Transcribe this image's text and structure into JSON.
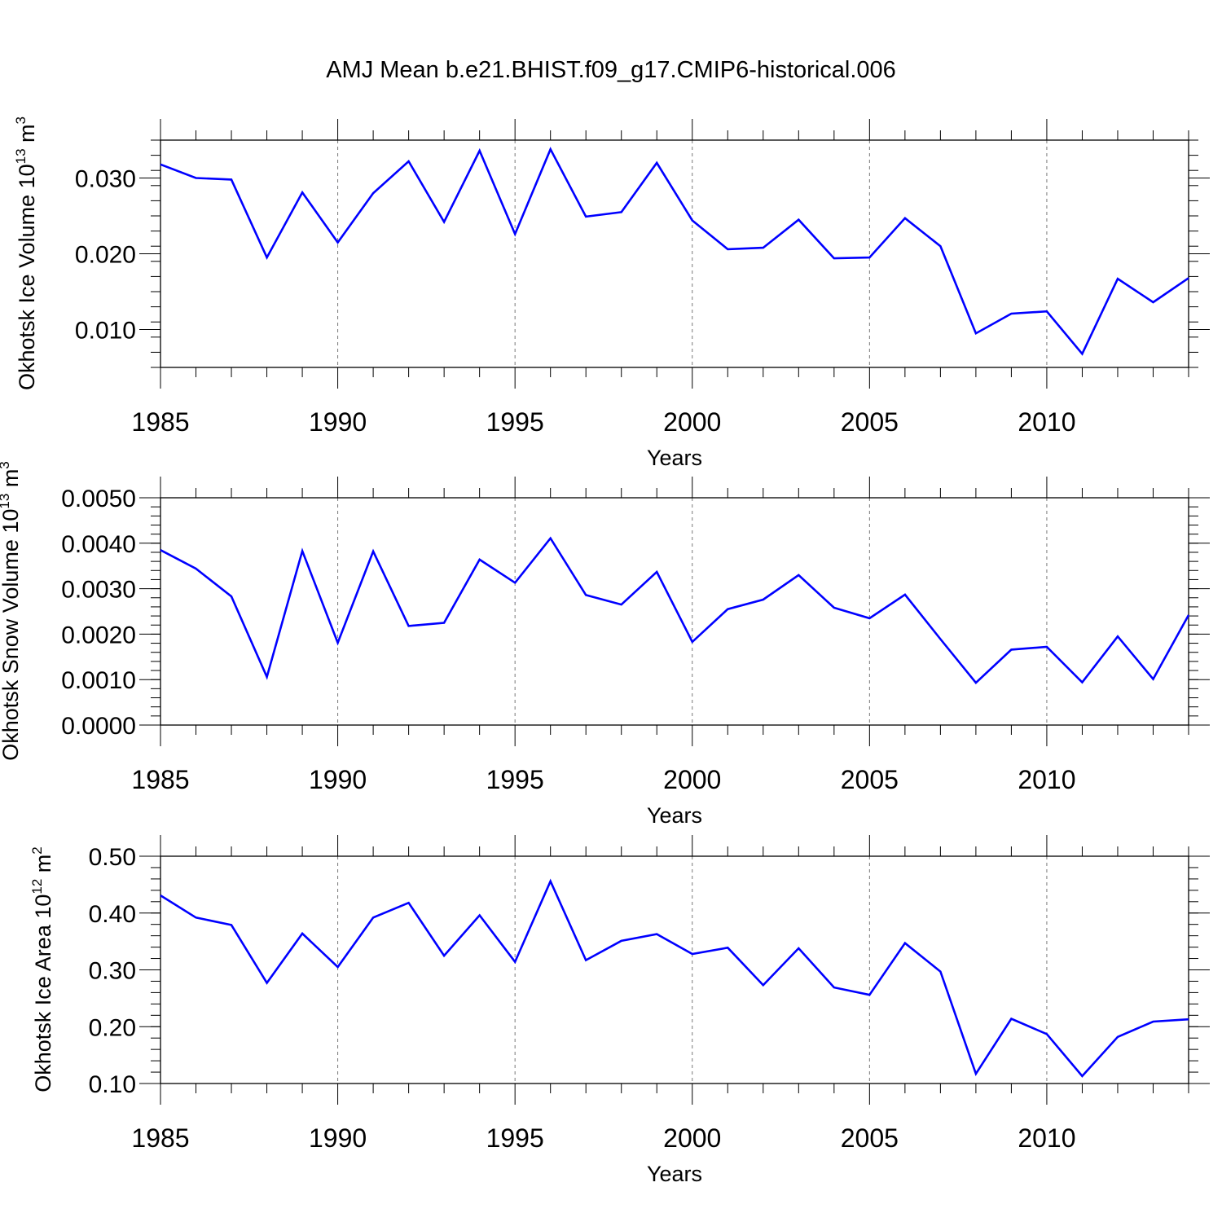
{
  "figure_title": "AMJ Mean b.e21.BHIST.f09_g17.CMIP6-historical.006",
  "colors": {
    "line": "#0000ff",
    "axis": "#000000",
    "grid": "#777777"
  },
  "chart_data": [
    {
      "type": "line",
      "title": "AMJ Mean b.e21.BHIST.f09_g17.CMIP6-historical.006",
      "xlabel": "Years",
      "ylabel_main": "Okhotsk Ice Volume 10",
      "ylabel_exp": "13",
      "ylabel_unit": " m",
      "ylabel_unit_exp": "3",
      "xlim": [
        1985,
        2014
      ],
      "ylim": [
        0.005,
        0.035
      ],
      "yticks": [
        0.01,
        0.02,
        0.03
      ],
      "ytick_labels": [
        "0.010",
        "0.020",
        "0.030"
      ],
      "yminor_step": 0.002,
      "xticks": [
        1985,
        1990,
        1995,
        2000,
        2005,
        2010
      ],
      "xtick_labels": [
        "1985",
        "1990",
        "1995",
        "2000",
        "2005",
        "2010"
      ],
      "grid": "vertical dashed at major x ticks",
      "x": [
        1985,
        1986,
        1987,
        1988,
        1989,
        1990,
        1991,
        1992,
        1993,
        1994,
        1995,
        1996,
        1997,
        1998,
        1999,
        2000,
        2001,
        2002,
        2003,
        2004,
        2005,
        2006,
        2007,
        2008,
        2009,
        2010,
        2011,
        2012,
        2013,
        2014
      ],
      "series": [
        {
          "name": "Okhotsk Ice Volume",
          "values": [
            0.0318,
            0.03,
            0.0298,
            0.0195,
            0.0281,
            0.0215,
            0.028,
            0.0322,
            0.0242,
            0.0336,
            0.0226,
            0.0338,
            0.0249,
            0.0255,
            0.032,
            0.0244,
            0.0206,
            0.0208,
            0.0245,
            0.0194,
            0.0195,
            0.0247,
            0.021,
            0.0095,
            0.0121,
            0.0124,
            0.0068,
            0.0167,
            0.0136,
            0.0168
          ]
        }
      ]
    },
    {
      "type": "line",
      "xlabel": "Years",
      "ylabel_main": "Okhotsk Snow Volume 10",
      "ylabel_exp": "13",
      "ylabel_unit": " m",
      "ylabel_unit_exp": "3",
      "xlim": [
        1985,
        2014
      ],
      "ylim": [
        0.0,
        0.005
      ],
      "yticks": [
        0.0,
        0.001,
        0.002,
        0.003,
        0.004,
        0.005
      ],
      "ytick_labels": [
        "0.0000",
        "0.0010",
        "0.0020",
        "0.0030",
        "0.0040",
        "0.0050"
      ],
      "yminor_step": 0.0002,
      "xticks": [
        1985,
        1990,
        1995,
        2000,
        2005,
        2010
      ],
      "xtick_labels": [
        "1985",
        "1990",
        "1995",
        "2000",
        "2005",
        "2010"
      ],
      "grid": "vertical dashed at major x ticks",
      "x": [
        1985,
        1986,
        1987,
        1988,
        1989,
        1990,
        1991,
        1992,
        1993,
        1994,
        1995,
        1996,
        1997,
        1998,
        1999,
        2000,
        2001,
        2002,
        2003,
        2004,
        2005,
        2006,
        2007,
        2008,
        2009,
        2010,
        2011,
        2012,
        2013,
        2014
      ],
      "series": [
        {
          "name": "Okhotsk Snow Volume",
          "values": [
            0.00385,
            0.00344,
            0.00283,
            0.00106,
            0.00383,
            0.00181,
            0.00382,
            0.00218,
            0.00225,
            0.00364,
            0.00313,
            0.00411,
            0.00286,
            0.00265,
            0.00337,
            0.00183,
            0.00255,
            0.00276,
            0.0033,
            0.00258,
            0.00235,
            0.00287,
            0.00189,
            0.00093,
            0.00166,
            0.00172,
            0.00094,
            0.00195,
            0.00101,
            0.00242
          ]
        }
      ]
    },
    {
      "type": "line",
      "xlabel": "Years",
      "ylabel_main": "Okhotsk Ice Area 10",
      "ylabel_exp": "12",
      "ylabel_unit": " m",
      "ylabel_unit_exp": "2",
      "xlim": [
        1985,
        2014
      ],
      "ylim": [
        0.1,
        0.5
      ],
      "yticks": [
        0.1,
        0.2,
        0.3,
        0.4,
        0.5
      ],
      "ytick_labels": [
        "0.10",
        "0.20",
        "0.30",
        "0.40",
        "0.50"
      ],
      "yminor_step": 0.02,
      "xticks": [
        1985,
        1990,
        1995,
        2000,
        2005,
        2010
      ],
      "xtick_labels": [
        "1985",
        "1990",
        "1995",
        "2000",
        "2005",
        "2010"
      ],
      "grid": "vertical dashed at major x ticks",
      "x": [
        1985,
        1986,
        1987,
        1988,
        1989,
        1990,
        1991,
        1992,
        1993,
        1994,
        1995,
        1996,
        1997,
        1998,
        1999,
        2000,
        2001,
        2002,
        2003,
        2004,
        2005,
        2006,
        2007,
        2008,
        2009,
        2010,
        2011,
        2012,
        2013,
        2014
      ],
      "series": [
        {
          "name": "Okhotsk Ice Area",
          "values": [
            0.431,
            0.392,
            0.379,
            0.277,
            0.364,
            0.305,
            0.392,
            0.418,
            0.325,
            0.396,
            0.314,
            0.456,
            0.317,
            0.351,
            0.363,
            0.328,
            0.339,
            0.273,
            0.338,
            0.269,
            0.256,
            0.347,
            0.297,
            0.117,
            0.214,
            0.187,
            0.113,
            0.182,
            0.209,
            0.213
          ]
        }
      ]
    }
  ]
}
